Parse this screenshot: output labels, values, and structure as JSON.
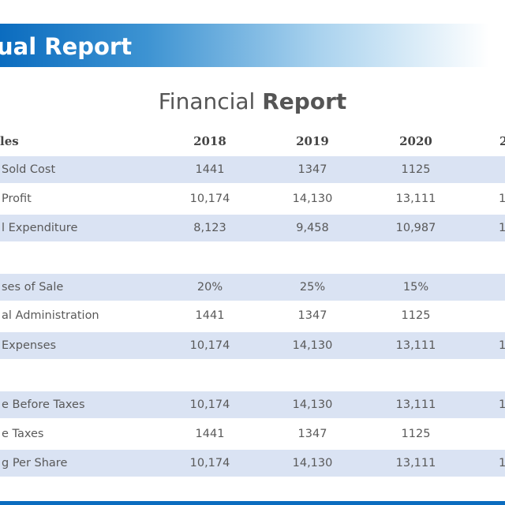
{
  "banner": {
    "title": "ual Report"
  },
  "heading": {
    "light": "Financial",
    "bold": "Report"
  },
  "table": {
    "headers": [
      "les",
      "2018",
      "2019",
      "2020",
      "2"
    ],
    "rows": [
      {
        "label": "Sold Cost",
        "values": [
          "1441",
          "1347",
          "1125",
          ""
        ]
      },
      {
        "label": "Profit",
        "values": [
          "10,174",
          "14,130",
          "13,111",
          "1"
        ]
      },
      {
        "label": "l Expenditure",
        "values": [
          "8,123",
          "9,458",
          "10,987",
          "1"
        ]
      },
      {
        "label": "ses of Sale",
        "values": [
          "20%",
          "25%",
          "15%",
          ""
        ]
      },
      {
        "label": "al Administration",
        "values": [
          "1441",
          "1347",
          "1125",
          ""
        ]
      },
      {
        "label": "Expenses",
        "values": [
          "10,174",
          "14,130",
          "13,111",
          "1"
        ]
      },
      {
        "label": "e Before Taxes",
        "values": [
          "10,174",
          "14,130",
          "13,111",
          "1"
        ]
      },
      {
        "label": "e Taxes",
        "values": [
          "1441",
          "1347",
          "1125",
          ""
        ]
      },
      {
        "label": "g Per Share",
        "values": [
          "10,174",
          "14,130",
          "13,111",
          "1"
        ]
      }
    ]
  },
  "colors": {
    "accent": "#0b6cbf",
    "band": "#dae3f3"
  }
}
